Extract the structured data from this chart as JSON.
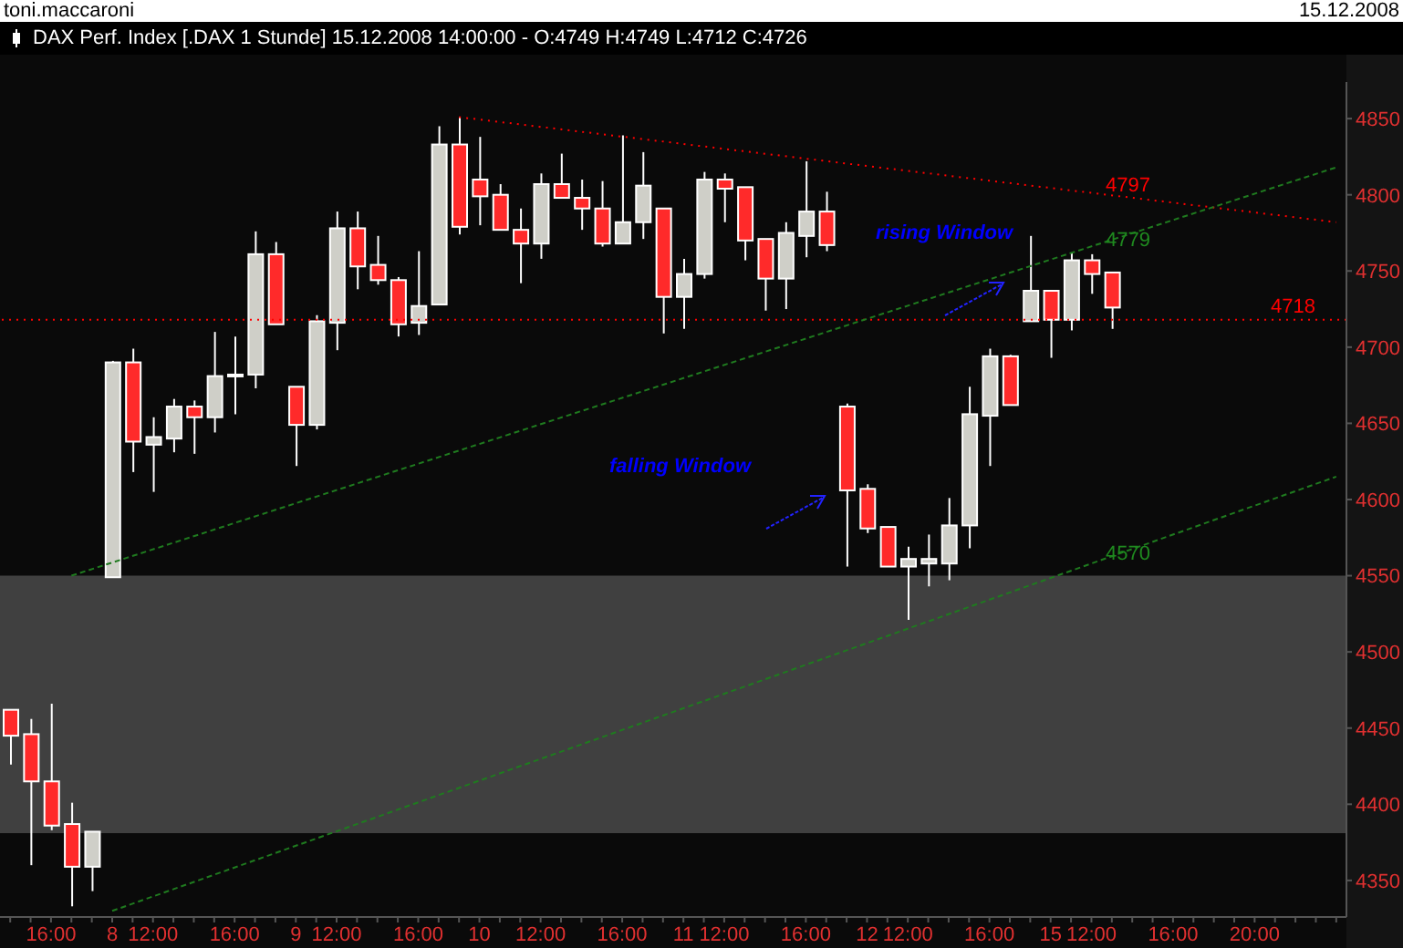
{
  "chart_data": {
    "type": "candlestick",
    "title": "DAX Perf. Index [.DAX  1 Stunde] 15.12.2008 14:00:00 - O:4749 H:4749 L:4712 C:4726",
    "annotations": [
      "toni.maccaroni",
      "15.12.2008",
      "4797",
      "4779",
      "4570",
      "falling Window",
      "rising Window"
    ],
    "categories": [
      null,
      null,
      "16:00",
      null,
      null,
      "8",
      null,
      "12:00",
      null,
      null,
      null,
      "16:00",
      null,
      null,
      "9",
      null,
      "12:00",
      null,
      null,
      null,
      "16:00",
      null,
      null,
      "10",
      null,
      null,
      "12:00",
      null,
      null,
      null,
      "16:00",
      null,
      null,
      "11",
      null,
      "12:00",
      null,
      null,
      null,
      "16:00",
      null,
      null,
      "12",
      null,
      "12:00",
      null,
      null,
      null,
      "16:00",
      null,
      null,
      "15",
      null,
      "12:00",
      null,
      null,
      null,
      "16:00",
      null,
      null,
      null,
      "20:00",
      null,
      null,
      null,
      null
    ],
    "ohlc": [
      [
        4462,
        4462,
        4426,
        4445
      ],
      [
        4446,
        4456,
        4360,
        4415
      ],
      [
        4415,
        4466,
        4383,
        4386
      ],
      [
        4387,
        4401,
        4333,
        4359
      ],
      [
        4359,
        4382,
        4343,
        4382
      ],
      [
        4549,
        4691,
        4549,
        4690
      ],
      [
        4690,
        4699,
        4618,
        4638
      ],
      [
        4636,
        4654,
        4605,
        4641
      ],
      [
        4640,
        4666,
        4631,
        4661
      ],
      [
        4661,
        4665,
        4630,
        4654
      ],
      [
        4654,
        4710,
        4644,
        4681
      ],
      [
        4681,
        4707,
        4656,
        4682
      ],
      [
        4682,
        4776,
        4673,
        4761
      ],
      [
        4761,
        4769,
        4715,
        4715
      ],
      [
        4674,
        4674,
        4622,
        4649
      ],
      [
        4649,
        4721,
        4646,
        4717
      ],
      [
        4716,
        4789,
        4698,
        4778
      ],
      [
        4778,
        4789,
        4738,
        4753
      ],
      [
        4754,
        4773,
        4741,
        4744
      ],
      [
        4744,
        4746,
        4707,
        4715
      ],
      [
        4716,
        4763,
        4708,
        4727
      ],
      [
        4728,
        4845,
        4728,
        4833
      ],
      [
        4833,
        4851,
        4774,
        4779
      ],
      [
        4810,
        4838,
        4780,
        4799
      ],
      [
        4800,
        4807,
        4777,
        4777
      ],
      [
        4777,
        4791,
        4742,
        4768
      ],
      [
        4768,
        4814,
        4758,
        4807
      ],
      [
        4807,
        4827,
        4798,
        4798
      ],
      [
        4798,
        4810,
        4777,
        4791
      ],
      [
        4791,
        4809,
        4766,
        4768
      ],
      [
        4768,
        4839,
        4768,
        4782
      ],
      [
        4782,
        4828,
        4771,
        4806
      ],
      [
        4791,
        4791,
        4709,
        4733
      ],
      [
        4733,
        4758,
        4712,
        4748
      ],
      [
        4748,
        4815,
        4745,
        4810
      ],
      [
        4810,
        4814,
        4782,
        4804
      ],
      [
        4805,
        4805,
        4757,
        4770
      ],
      [
        4771,
        4771,
        4724,
        4745
      ],
      [
        4745,
        4782,
        4725,
        4775
      ],
      [
        4773,
        4822,
        4759,
        4789
      ],
      [
        4789,
        4802,
        4763,
        4767
      ],
      [
        4661,
        4663,
        4556,
        4606
      ],
      [
        4607,
        4610,
        4578,
        4581
      ],
      [
        4582,
        4582,
        4556,
        4556
      ],
      [
        4556,
        4569,
        4521,
        4561
      ],
      [
        4558,
        4577,
        4543,
        4561
      ],
      [
        4558,
        4601,
        4547,
        4583
      ],
      [
        4583,
        4674,
        4568,
        4656
      ],
      [
        4655,
        4699,
        4622,
        4694
      ],
      [
        4694,
        4695,
        4662,
        4662
      ],
      [
        4717,
        4773,
        4717,
        4737
      ],
      [
        4737,
        4737,
        4693,
        4718
      ],
      [
        4718,
        4762,
        4711,
        4757
      ],
      [
        4757,
        4761,
        4735,
        4748
      ],
      [
        4749,
        4749,
        4712,
        4726
      ],
      null,
      null,
      null,
      null,
      null,
      null,
      null,
      null,
      null,
      null,
      null
    ],
    "series": [
      {
        "type": "line",
        "values": [
          null,
          null,
          null,
          null,
          null,
          null,
          null,
          null,
          null,
          null,
          null,
          null,
          null,
          null,
          null,
          null,
          null,
          null,
          null,
          null,
          null,
          null,
          4851,
          null,
          null,
          null,
          null,
          null,
          null,
          null,
          null,
          null,
          null,
          null,
          null,
          null,
          null,
          null,
          null,
          null,
          null,
          null,
          null,
          null,
          null,
          null,
          null,
          null,
          null,
          null,
          null,
          null,
          null,
          null,
          null,
          null,
          null,
          null,
          null,
          null,
          null,
          null,
          null,
          null,
          null,
          4782
        ],
        "color": "#ff0000",
        "line_style": "dotted"
      },
      {
        "type": "line",
        "values": [
          null,
          null,
          null,
          4550,
          null,
          null,
          null,
          null,
          null,
          null,
          null,
          null,
          null,
          null,
          null,
          null,
          null,
          null,
          null,
          null,
          null,
          null,
          null,
          null,
          null,
          null,
          null,
          null,
          null,
          null,
          null,
          null,
          null,
          null,
          null,
          null,
          null,
          null,
          null,
          null,
          null,
          null,
          null,
          null,
          null,
          null,
          null,
          null,
          null,
          null,
          null,
          null,
          null,
          null,
          null,
          null,
          null,
          null,
          null,
          null,
          null,
          null,
          null,
          null,
          null,
          4818
        ],
        "color": "#1f7a1f",
        "line_style": "dashed"
      },
      {
        "type": "line",
        "values": [
          null,
          null,
          null,
          null,
          null,
          4330,
          null,
          null,
          null,
          null,
          null,
          null,
          null,
          null,
          null,
          null,
          null,
          null,
          null,
          null,
          null,
          null,
          null,
          null,
          null,
          null,
          null,
          null,
          null,
          null,
          null,
          null,
          null,
          null,
          null,
          null,
          null,
          null,
          null,
          null,
          null,
          null,
          null,
          null,
          null,
          null,
          null,
          null,
          null,
          null,
          null,
          null,
          null,
          null,
          null,
          null,
          null,
          null,
          null,
          null,
          null,
          null,
          null,
          null,
          null,
          4615
        ],
        "color": "#1f7a1f",
        "line_style": "dashed"
      }
    ],
    "ref_lines": [
      {
        "axis": "y",
        "value": 4718,
        "label": "4718",
        "color": "#ff0000",
        "line_style": "dotted"
      }
    ],
    "bands": [
      {
        "axis": "y",
        "from": 4381,
        "to": 4550,
        "color": "#404040"
      }
    ],
    "ylim": [
      4326,
      4874
    ],
    "yticks": [
      4350,
      4400,
      4450,
      4500,
      4550,
      4600,
      4650,
      4700,
      4750,
      4800,
      4850
    ]
  }
}
